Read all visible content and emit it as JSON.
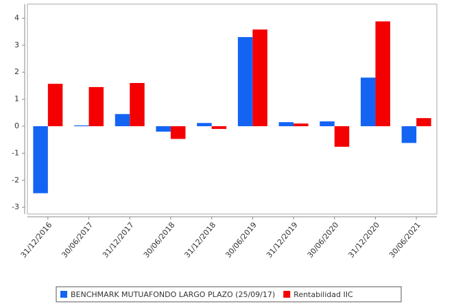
{
  "chart_data": {
    "type": "bar",
    "categories": [
      "31/12/2016",
      "30/06/2017",
      "31/12/2017",
      "30/06/2018",
      "31/12/2018",
      "30/06/2019",
      "31/12/2019",
      "30/06/2020",
      "31/12/2020",
      "30/06/2021"
    ],
    "series": [
      {
        "name": "BENCHMARK MUTUAFONDO LARGO PLAZO (25/09/17)",
        "color": "#1464f4",
        "values": [
          -2.48,
          0.03,
          0.45,
          -0.2,
          0.12,
          3.3,
          0.15,
          0.18,
          1.8,
          -0.62
        ]
      },
      {
        "name": "Rentabilidad IIC",
        "color": "#f40000",
        "values": [
          1.57,
          1.45,
          1.6,
          -0.47,
          -0.1,
          3.58,
          0.1,
          -0.76,
          3.88,
          0.3
        ]
      }
    ],
    "ylim": [
      -3.25,
      4.52
    ],
    "yticks": [
      -3,
      -2,
      -1,
      0,
      1,
      2,
      3,
      4
    ],
    "legend": "bottom"
  }
}
